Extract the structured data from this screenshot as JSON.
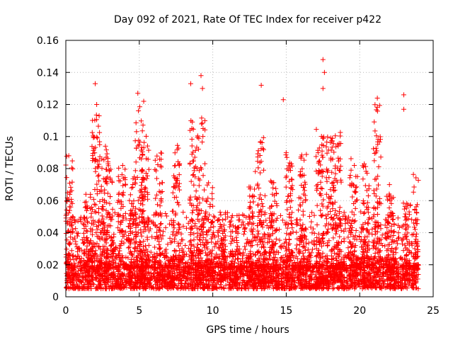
{
  "chart_data": {
    "type": "scatter",
    "title": "Day 092 of 2021, Rate Of TEC Index for receiver p422",
    "xlabel": "GPS time / hours",
    "ylabel": "ROTI / TECUs",
    "xlim": [
      0,
      25
    ],
    "ylim": [
      0,
      0.16
    ],
    "xticks": [
      0,
      5,
      10,
      15,
      20,
      25
    ],
    "xtick_labels": [
      "0",
      "5",
      "10",
      "15",
      "20",
      "25"
    ],
    "yticks": [
      0,
      0.02,
      0.04,
      0.06,
      0.08,
      0.1,
      0.12,
      0.14,
      0.16
    ],
    "ytick_labels": [
      "0",
      "0.02",
      "0.04",
      "0.06",
      "0.08",
      "0.1",
      "0.12",
      "0.14",
      "0.16"
    ],
    "grid": true,
    "marker": "+",
    "marker_color": "#ff0000",
    "series": [
      {
        "name": "ROTI p422",
        "x_range": [
          0,
          24
        ],
        "baseline_band": [
          0.005,
          0.02
        ],
        "notable_points": [
          {
            "x": 0.2,
            "y": 0.088
          },
          {
            "x": 2.0,
            "y": 0.133
          },
          {
            "x": 2.1,
            "y": 0.12
          },
          {
            "x": 4.9,
            "y": 0.127
          },
          {
            "x": 5.3,
            "y": 0.122
          },
          {
            "x": 8.5,
            "y": 0.133
          },
          {
            "x": 9.2,
            "y": 0.138
          },
          {
            "x": 9.3,
            "y": 0.13
          },
          {
            "x": 13.3,
            "y": 0.132
          },
          {
            "x": 14.8,
            "y": 0.123
          },
          {
            "x": 17.5,
            "y": 0.148
          },
          {
            "x": 17.5,
            "y": 0.13
          },
          {
            "x": 17.6,
            "y": 0.14
          },
          {
            "x": 21.2,
            "y": 0.124
          },
          {
            "x": 23.0,
            "y": 0.126
          },
          {
            "x": 23.0,
            "y": 0.117
          }
        ],
        "bursts": [
          {
            "center": 0.25,
            "peak": 0.09
          },
          {
            "center": 1.5,
            "peak": 0.065
          },
          {
            "center": 2.05,
            "peak": 0.118
          },
          {
            "center": 2.6,
            "peak": 0.095
          },
          {
            "center": 3.0,
            "peak": 0.085
          },
          {
            "center": 3.8,
            "peak": 0.082
          },
          {
            "center": 4.5,
            "peak": 0.075
          },
          {
            "center": 5.0,
            "peak": 0.12
          },
          {
            "center": 5.4,
            "peak": 0.105
          },
          {
            "center": 6.3,
            "peak": 0.09
          },
          {
            "center": 7.5,
            "peak": 0.095
          },
          {
            "center": 8.7,
            "peak": 0.11
          },
          {
            "center": 9.2,
            "peak": 0.112
          },
          {
            "center": 9.8,
            "peak": 0.075
          },
          {
            "center": 10.6,
            "peak": 0.055
          },
          {
            "center": 11.5,
            "peak": 0.05
          },
          {
            "center": 12.7,
            "peak": 0.08
          },
          {
            "center": 13.3,
            "peak": 0.1
          },
          {
            "center": 14.1,
            "peak": 0.075
          },
          {
            "center": 15.2,
            "peak": 0.09
          },
          {
            "center": 16.1,
            "peak": 0.09
          },
          {
            "center": 17.3,
            "peak": 0.105
          },
          {
            "center": 18.0,
            "peak": 0.1
          },
          {
            "center": 18.5,
            "peak": 0.108
          },
          {
            "center": 19.6,
            "peak": 0.09
          },
          {
            "center": 20.4,
            "peak": 0.085
          },
          {
            "center": 21.2,
            "peak": 0.12
          },
          {
            "center": 22.1,
            "peak": 0.07
          },
          {
            "center": 23.2,
            "peak": 0.062
          },
          {
            "center": 23.9,
            "peak": 0.078
          }
        ]
      }
    ]
  }
}
